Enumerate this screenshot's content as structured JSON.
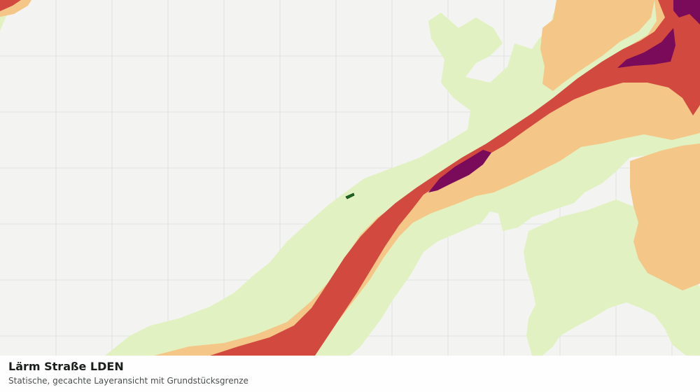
{
  "legend": {
    "title": "Lärm Straße LDEN",
    "subtitle": "Statische, gecachte Layeransicht mit Grundstücksgrenze"
  },
  "colors": {
    "background": "#f3f4f2",
    "grid": "#e1e3e0",
    "noise_low": "#e2f1c1",
    "noise_medium": "#f4c688",
    "noise_high": "#d2493f",
    "noise_very_high": "#7a0a5a",
    "parcel_boundary": "#1d6b23"
  }
}
